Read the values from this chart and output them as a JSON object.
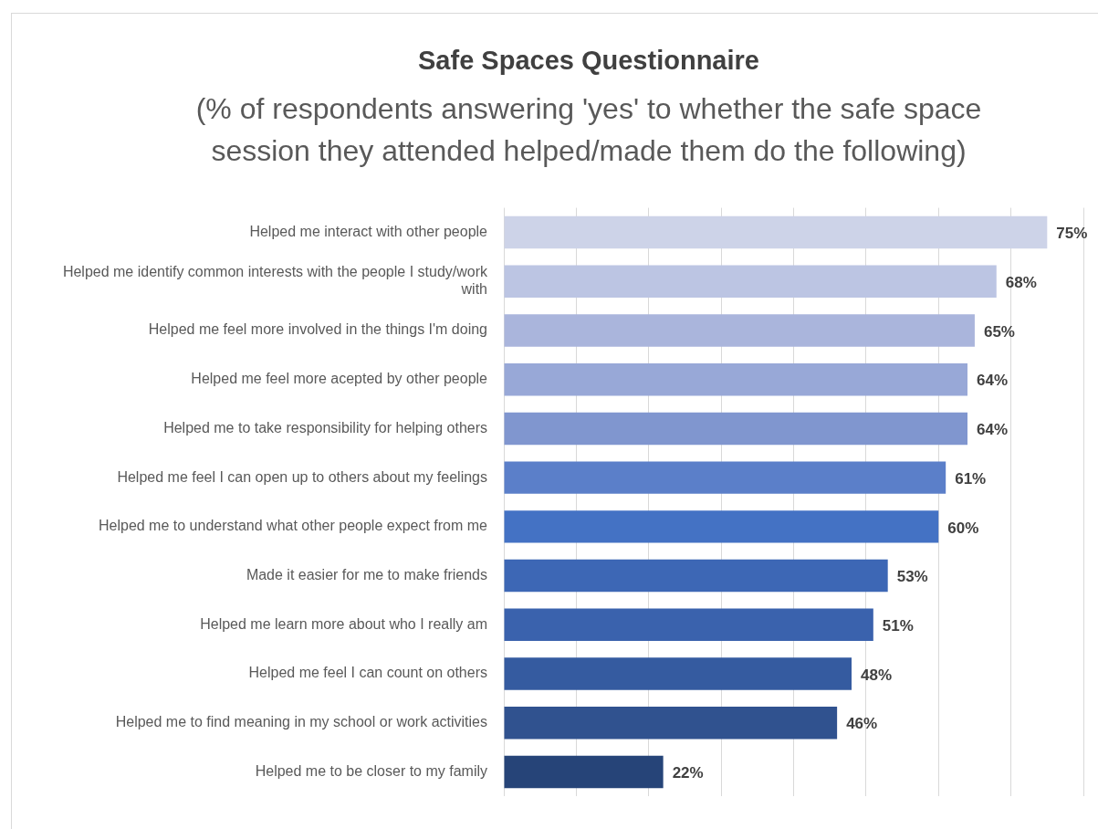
{
  "chart_data": {
    "type": "bar",
    "orientation": "horizontal",
    "title": "Safe Spaces Questionnaire",
    "subtitle": "(% of respondents answering 'yes' to whether the safe space session they attended helped/made them do the following)",
    "categories": [
      "Helped me interact with other people",
      "Helped me identify common interests with the people I study/work with",
      "Helped me feel more involved in the things I'm doing",
      "Helped me feel more acepted by other people",
      "Helped me to take responsibility for helping others",
      "Helped me feel I can open up to others about my feelings",
      "Helped me to understand what other people expect from me",
      "Made it easier for me to make friends",
      "Helped me learn more about who I really am",
      "Helped me feel I can count on others",
      "Helped me to find meaning in my school or work activities",
      "Helped me to be closer to my family"
    ],
    "values": [
      75,
      68,
      65,
      64,
      64,
      61,
      60,
      53,
      51,
      48,
      46,
      22
    ],
    "value_labels": [
      "75%",
      "68%",
      "65%",
      "64%",
      "64%",
      "61%",
      "60%",
      "53%",
      "51%",
      "48%",
      "46%",
      "22%"
    ],
    "colors": [
      "#cdd3e8",
      "#bcc5e3",
      "#aab5dc",
      "#98a8d7",
      "#8096cf",
      "#5b7fc9",
      "#4472c4",
      "#3d67b5",
      "#3a62ad",
      "#355ba0",
      "#30528f",
      "#264478"
    ],
    "xlim": [
      0,
      80
    ],
    "xticks": [
      {
        "value": 0,
        "label": null
      },
      {
        "value": 10,
        "label": null
      },
      {
        "value": 20,
        "label": null
      },
      {
        "value": 30,
        "label": null
      },
      {
        "value": 40,
        "label": null
      },
      {
        "value": 50,
        "label": null
      },
      {
        "value": 60,
        "label": null
      },
      {
        "value": 70,
        "label": null
      },
      {
        "value": 80,
        "label": null
      }
    ],
    "grid": "x",
    "tick_labels": "y",
    "legend": false
  }
}
